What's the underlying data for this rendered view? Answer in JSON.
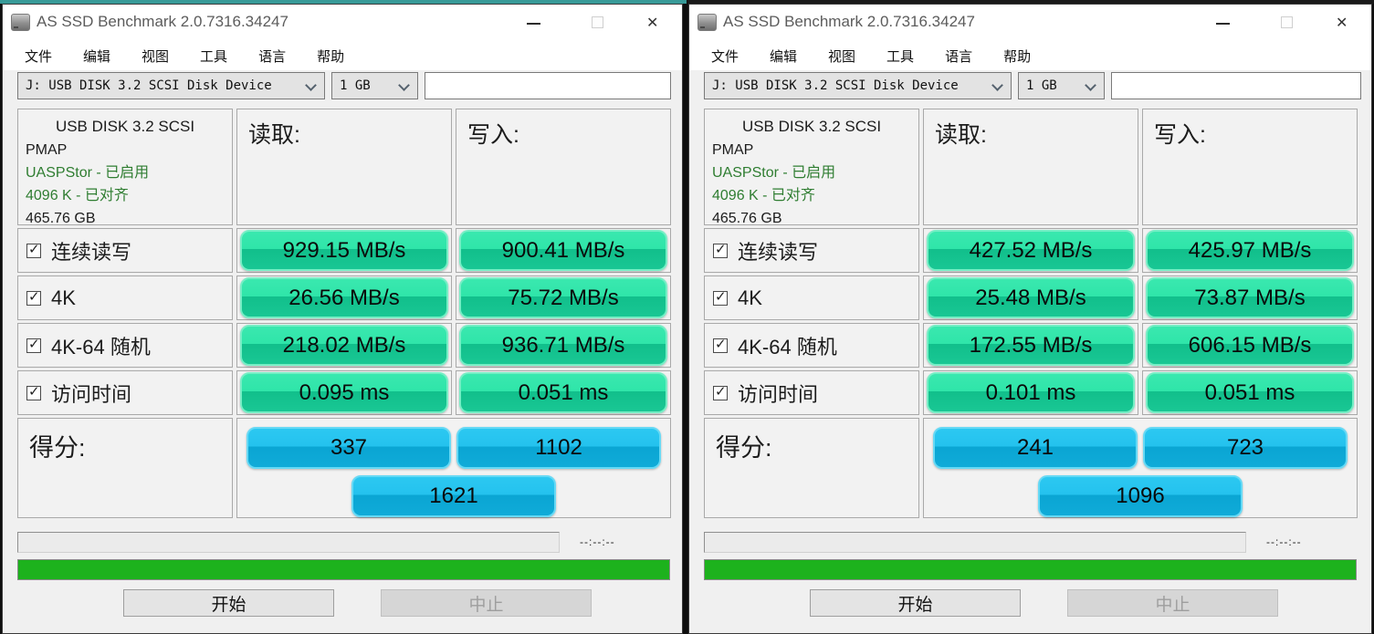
{
  "colors": {
    "pill_green_top": "#3ae8af",
    "pill_green_bottom": "#11bf8b",
    "pill_blue_top": "#2cc8f1",
    "pill_blue_bottom": "#0aa5d3",
    "progress_green": "#1db21d",
    "info_green_text": "#2f7d31"
  },
  "windows": [
    {
      "title": "AS SSD Benchmark 2.0.7316.34247",
      "menu": [
        "文件",
        "编辑",
        "视图",
        "工具",
        "语言",
        "帮助"
      ],
      "drive_select": "J:  USB DISK 3.2 SCSI Disk Device",
      "size_select": "1 GB",
      "comment_value": "",
      "info": {
        "line1": "USB DISK 3.2 SCSI",
        "line2": "PMAP",
        "line3": "UASPStor - 已启用",
        "line4": "4096 K - 已对齐",
        "line5": "465.76 GB"
      },
      "read_header": "读取:",
      "write_header": "写入:",
      "rows": [
        {
          "label": "连续读写",
          "read": "929.15 MB/s",
          "write": "900.41 MB/s"
        },
        {
          "label": "4K",
          "read": "26.56 MB/s",
          "write": "75.72 MB/s"
        },
        {
          "label": "4K-64 随机",
          "read": "218.02 MB/s",
          "write": "936.71 MB/s"
        },
        {
          "label": "访问时间",
          "read": "0.095 ms",
          "write": "0.051 ms"
        }
      ],
      "score_label": "得分:",
      "scores": {
        "read": "337",
        "write": "1102",
        "total": "1621"
      },
      "time_display": "--:--:--",
      "buttons": {
        "start": "开始",
        "abort": "中止"
      }
    },
    {
      "title": "AS SSD Benchmark 2.0.7316.34247",
      "menu": [
        "文件",
        "编辑",
        "视图",
        "工具",
        "语言",
        "帮助"
      ],
      "drive_select": "J:  USB DISK 3.2 SCSI Disk Device",
      "size_select": "1 GB",
      "comment_value": "",
      "info": {
        "line1": "USB DISK 3.2 SCSI",
        "line2": "PMAP",
        "line3": "UASPStor - 已启用",
        "line4": "4096 K - 已对齐",
        "line5": "465.76 GB"
      },
      "read_header": "读取:",
      "write_header": "写入:",
      "rows": [
        {
          "label": "连续读写",
          "read": "427.52 MB/s",
          "write": "425.97 MB/s"
        },
        {
          "label": "4K",
          "read": "25.48 MB/s",
          "write": "73.87 MB/s"
        },
        {
          "label": "4K-64 随机",
          "read": "172.55 MB/s",
          "write": "606.15 MB/s"
        },
        {
          "label": "访问时间",
          "read": "0.101 ms",
          "write": "0.051 ms"
        }
      ],
      "score_label": "得分:",
      "scores": {
        "read": "241",
        "write": "723",
        "total": "1096"
      },
      "time_display": "--:--:--",
      "buttons": {
        "start": "开始",
        "abort": "中止"
      }
    }
  ]
}
